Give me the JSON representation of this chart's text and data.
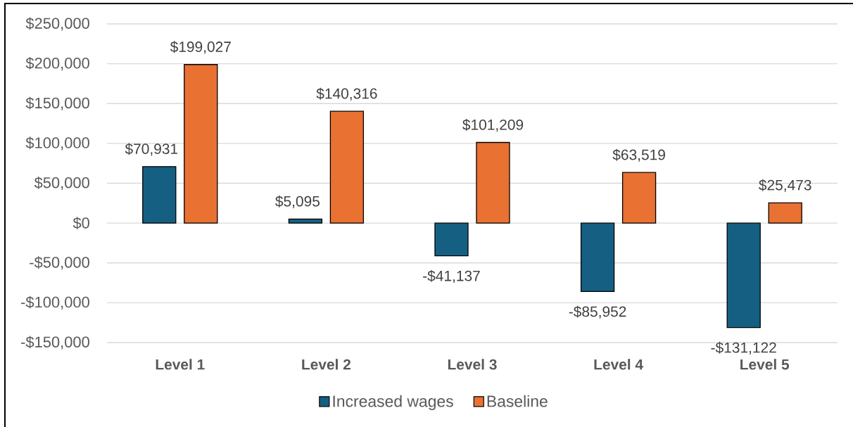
{
  "chart_data": {
    "type": "bar",
    "categories": [
      "Level 1",
      "Level 2",
      "Level 3",
      "Level 4",
      "Level 5"
    ],
    "series": [
      {
        "name": "Increased wages",
        "color": "#156082",
        "values": [
          70931,
          5095,
          -41137,
          -85952,
          -131122
        ],
        "value_labels": [
          "$70,931",
          "$5,095",
          "-$41,137",
          "-$85,952",
          "-$131,122"
        ]
      },
      {
        "name": "Baseline",
        "color": "#e97132",
        "values": [
          199027,
          140316,
          101209,
          63519,
          25473
        ],
        "value_labels": [
          "$199,027",
          "$140,316",
          "$101,209",
          "$63,519",
          "$25,473"
        ]
      }
    ],
    "ylim": [
      -150000,
      250000
    ],
    "yticks": [
      {
        "value": -150000,
        "label": "-$150,000"
      },
      {
        "value": -100000,
        "label": "-$100,000"
      },
      {
        "value": -50000,
        "label": "-$50,000"
      },
      {
        "value": 0,
        "label": "$0"
      },
      {
        "value": 50000,
        "label": "$50,000"
      },
      {
        "value": 100000,
        "label": "$100,000"
      },
      {
        "value": 150000,
        "label": "$150,000"
      },
      {
        "value": 200000,
        "label": "$200,000"
      },
      {
        "value": 250000,
        "label": "$250,000"
      }
    ],
    "grid": "y",
    "legend": "bottom"
  }
}
